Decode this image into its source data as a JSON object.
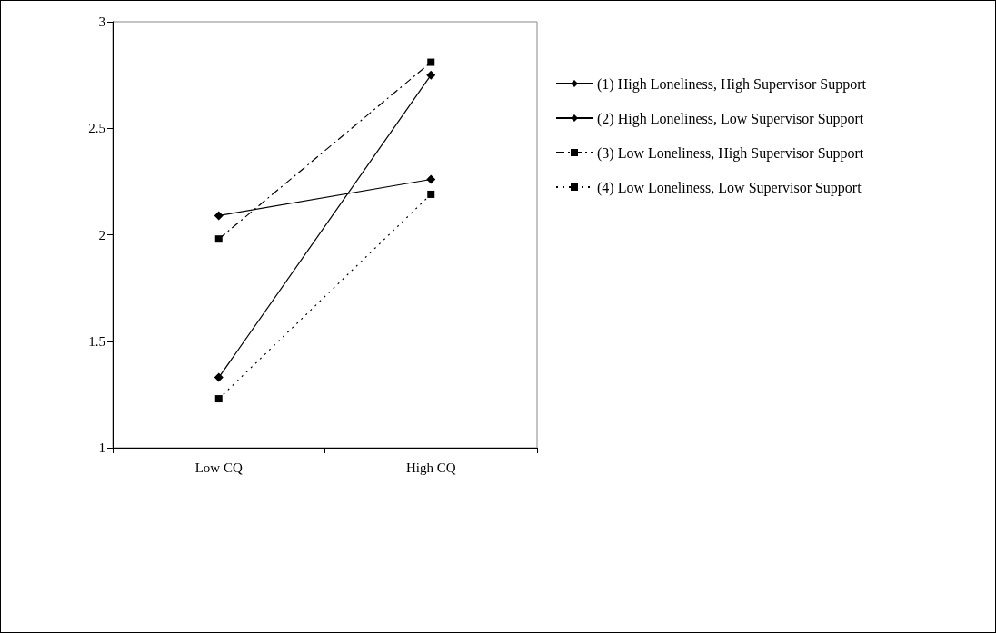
{
  "chart_data": {
    "type": "line",
    "categories": [
      "Low CQ",
      "High CQ"
    ],
    "series": [
      {
        "name": "(1) High Loneliness, High Supervisor Support",
        "color": "#000000",
        "values": [
          1.33,
          2.75
        ],
        "marker": "diamond",
        "line_style": "solid"
      },
      {
        "name": "(2) High Loneliness, Low Supervisor Support",
        "color": "#000000",
        "values": [
          2.09,
          2.26
        ],
        "marker": "diamond",
        "line_style": "solid"
      },
      {
        "name": "(3) Low Loneliness, High Supervisor Support",
        "color": "#000000",
        "values": [
          1.98,
          2.81
        ],
        "marker": "square",
        "line_style": "dashed"
      },
      {
        "name": "(4) Low Loneliness, Low Supervisor Support",
        "color": "#000000",
        "values": [
          1.23,
          2.19
        ],
        "marker": "square",
        "line_style": "dotted"
      }
    ],
    "ylim": [
      1,
      3
    ],
    "yticks": [
      1,
      1.5,
      2,
      2.5,
      3
    ],
    "grid": false,
    "legend": "right"
  }
}
